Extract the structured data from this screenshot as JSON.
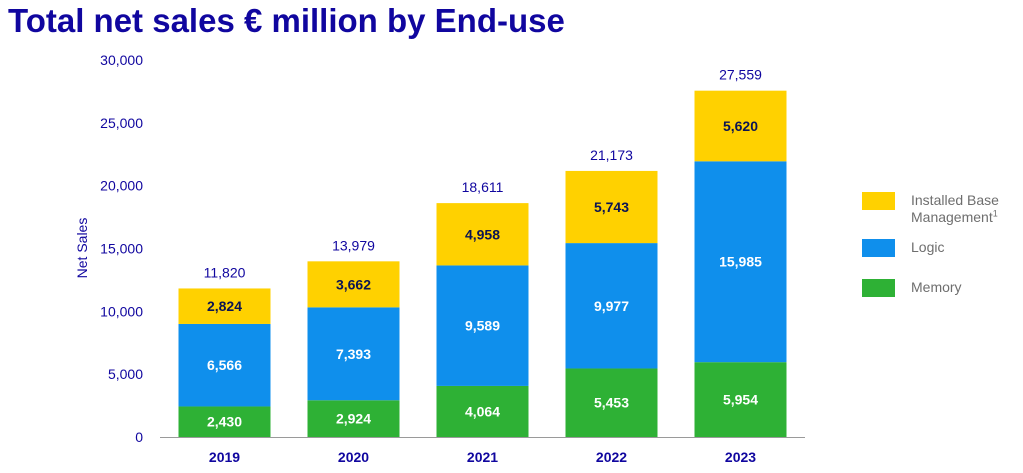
{
  "title": "Total net sales € million by End-use",
  "chart_data": {
    "type": "bar",
    "stacked": true,
    "title": "Total net sales € million by End-use",
    "xlabel": "",
    "ylabel": "Net Sales",
    "ylim": [
      0,
      30000
    ],
    "yticks": [
      0,
      5000,
      10000,
      15000,
      20000,
      25000,
      30000
    ],
    "ytick_labels": [
      "0",
      "5,000",
      "10,000",
      "15,000",
      "20,000",
      "25,000",
      "30,000"
    ],
    "categories": [
      "2019",
      "2020",
      "2021",
      "2022",
      "2023"
    ],
    "series": [
      {
        "name": "Memory",
        "color": "#2eb135",
        "label_color": "#ffffff",
        "values": [
          2430,
          2924,
          4064,
          5453,
          5954
        ],
        "labels": [
          "2,430",
          "2,924",
          "4,064",
          "5,453",
          "5,954"
        ]
      },
      {
        "name": "Logic",
        "color": "#0f8fec",
        "label_color": "#ffffff",
        "values": [
          6566,
          7393,
          9589,
          9977,
          15985
        ],
        "labels": [
          "6,566",
          "7,393",
          "9,589",
          "9,977",
          "15,985"
        ]
      },
      {
        "name": "Installed Base Management",
        "color": "#ffd100",
        "label_color": "#0b1453",
        "values": [
          2824,
          3662,
          4958,
          5743,
          5620
        ],
        "labels": [
          "2,824",
          "3,662",
          "4,958",
          "5,743",
          "5,620"
        ]
      }
    ],
    "totals": [
      11820,
      13979,
      18611,
      21173,
      27559
    ],
    "total_labels": [
      "11,820",
      "13,979",
      "18,611",
      "21,173",
      "27,559"
    ],
    "legend": {
      "position": "right",
      "items": [
        {
          "line1": "Installed Base",
          "line2": "Management",
          "sup": "1",
          "color": "#ffd100"
        },
        {
          "line1": "Logic",
          "color": "#0f8fec"
        },
        {
          "line1": "Memory",
          "color": "#2eb135"
        }
      ]
    }
  }
}
